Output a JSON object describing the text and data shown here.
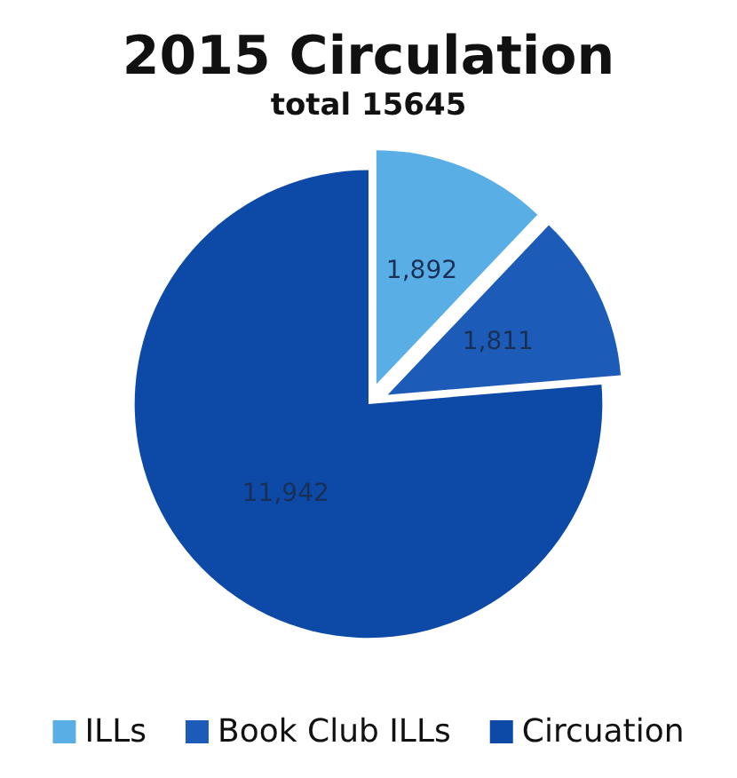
{
  "chart_data": {
    "type": "pie",
    "title": "2015 Circulation",
    "subtitle": "total 15645",
    "categories": [
      "ILLs",
      "Book Club ILLs",
      "Circuation"
    ],
    "values": [
      1892,
      1811,
      11942
    ],
    "value_labels": [
      "1,892",
      "1,811",
      "11,942"
    ],
    "colors": [
      "#5aaee6",
      "#1c5cb8",
      "#0d4aa8"
    ],
    "legend": "bottom"
  }
}
